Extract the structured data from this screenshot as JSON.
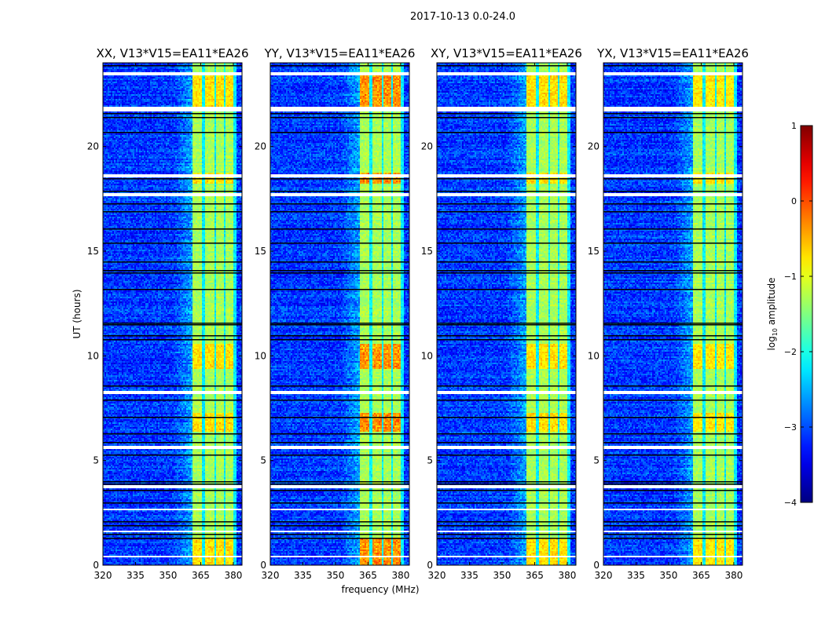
{
  "chart_data": {
    "type": "heatmap",
    "title": "2017-10-13 0.0-24.0",
    "xlabel": "frequency (MHz)",
    "ylabel": "UT (hours)",
    "xlim": [
      320,
      384
    ],
    "ylim": [
      0,
      24
    ],
    "xticks": [
      320,
      335,
      350,
      365,
      380
    ],
    "yticks": [
      0,
      5,
      10,
      15,
      20
    ],
    "panels": [
      {
        "title": "XX, V13*V15=EA11*EA26",
        "hot_gain": 0.6
      },
      {
        "title": "YY, V13*V15=EA11*EA26",
        "hot_gain": 1.0
      },
      {
        "title": "XY, V13*V15=EA11*EA26",
        "hot_gain": 0.6
      },
      {
        "title": "YX, V13*V15=EA11*EA26",
        "hot_gain": 0.55
      }
    ],
    "background_log_amp": -3.1,
    "bands_mhz": [
      [
        360.5,
        365.5
      ],
      [
        366.5,
        371
      ],
      [
        371.5,
        375.5
      ],
      [
        376,
        380
      ]
    ],
    "band_log_amp": -1.3,
    "hot_intervals_hours": [
      [
        0,
        1.3
      ],
      [
        6.4,
        7.3
      ],
      [
        9.4,
        10.6
      ],
      [
        18.3,
        18.8
      ],
      [
        21.9,
        23.6
      ]
    ],
    "flagged_hours": [
      [
        23.45,
        23.55
      ],
      [
        21.75,
        21.95
      ],
      [
        18.55,
        18.7
      ],
      [
        17.7,
        17.8
      ],
      [
        8.2,
        8.35
      ],
      [
        5.6,
        5.75
      ],
      [
        3.7,
        3.85
      ],
      [
        2.65,
        2.75
      ],
      [
        1.6,
        1.7
      ],
      [
        0.45,
        0.5
      ]
    ],
    "black_lines_hours": [
      23.9,
      21.6,
      21.4,
      20.7,
      18.5,
      17.9,
      17.3,
      16.9,
      16.1,
      15.4,
      14.5,
      14.1,
      14.0,
      13.2,
      11.6,
      11.5,
      11.0,
      10.8,
      8.6,
      7.9,
      7.1,
      6.3,
      5.9,
      5.3,
      4.0,
      3.9,
      3.6,
      3.0,
      2.1,
      1.9,
      1.5,
      1.3
    ],
    "colorbar": {
      "label": "log10 amplitude",
      "label_main": "log",
      "label_sub": "10",
      "label_rest": " amplitude",
      "range": [
        -4,
        1
      ],
      "ticks": [
        "1",
        "0",
        "−1",
        "−2",
        "−3",
        "−4"
      ],
      "colormap": "jet"
    }
  }
}
